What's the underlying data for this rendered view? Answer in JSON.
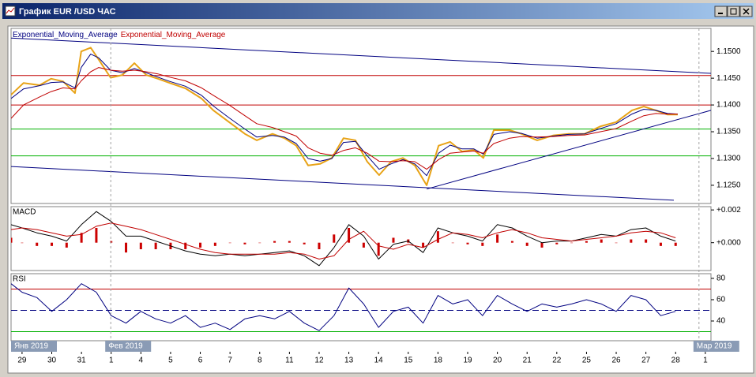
{
  "window": {
    "title": "График EUR /USD  ЧАС"
  },
  "time_axis": {
    "ticks": [
      {
        "value": 0,
        "label": "29"
      },
      {
        "value": 1,
        "label": "30"
      },
      {
        "value": 2,
        "label": "31"
      },
      {
        "value": 3,
        "label": "1"
      },
      {
        "value": 4,
        "label": "4"
      },
      {
        "value": 5,
        "label": "5"
      },
      {
        "value": 6,
        "label": "6"
      },
      {
        "value": 7,
        "label": "7"
      },
      {
        "value": 8,
        "label": "8"
      },
      {
        "value": 9,
        "label": "11"
      },
      {
        "value": 10,
        "label": "12"
      },
      {
        "value": 11,
        "label": "13"
      },
      {
        "value": 12,
        "label": "14"
      },
      {
        "value": 13,
        "label": "15"
      },
      {
        "value": 14,
        "label": "18"
      },
      {
        "value": 15,
        "label": "19"
      },
      {
        "value": 16,
        "label": "20"
      },
      {
        "value": 17,
        "label": "21"
      },
      {
        "value": 18,
        "label": "22"
      },
      {
        "value": 19,
        "label": "25"
      },
      {
        "value": 20,
        "label": "26"
      },
      {
        "value": 21,
        "label": "27"
      },
      {
        "value": 22,
        "label": "28"
      },
      {
        "value": 23,
        "label": "1"
      }
    ],
    "months": [
      {
        "value": -0.37,
        "label": "Янв 2019"
      },
      {
        "value": 2.8,
        "label": "Фев 2019"
      },
      {
        "value": 22.6,
        "label": "Мар 2019"
      }
    ]
  },
  "chart_data": [
    {
      "type": "line",
      "xlim": [
        -0.37,
        23.19
      ],
      "ylim": [
        1.1216,
        1.1543
      ],
      "yticks": [
        {
          "value": 1.125,
          "label": "1.1250"
        },
        {
          "value": 1.13,
          "label": "1.1300"
        },
        {
          "value": 1.135,
          "label": "1.1350"
        },
        {
          "value": 1.14,
          "label": "1.1400"
        },
        {
          "value": 1.145,
          "label": "1.1450"
        },
        {
          "value": 1.15,
          "label": "1.1500"
        }
      ],
      "x": [
        -0.37,
        0.05,
        0.59,
        0.98,
        1.38,
        1.78,
        1.99,
        2.31,
        2.58,
        2.98,
        3.38,
        3.78,
        4.18,
        4.57,
        4.97,
        5.5,
        6.04,
        6.44,
        6.97,
        7.5,
        7.9,
        8.43,
        8.83,
        9.23,
        9.63,
        10.03,
        10.43,
        10.82,
        11.22,
        11.62,
        12.02,
        12.42,
        12.82,
        13.22,
        13.62,
        14.02,
        14.41,
        14.81,
        15.21,
        15.53,
        15.88,
        16.41,
        16.81,
        17.34,
        17.87,
        18.4,
        18.94,
        19.47,
        20,
        20.53,
        20.93,
        21.33,
        21.73,
        22.07
      ],
      "series": [
        {
          "color": "#e8a317",
          "values": [
            1.1419,
            1.1441,
            1.1437,
            1.1449,
            1.1444,
            1.1422,
            1.15,
            1.1507,
            1.1485,
            1.1451,
            1.1456,
            1.1478,
            1.1456,
            1.1449,
            1.1441,
            1.1431,
            1.1412,
            1.139,
            1.1368,
            1.1346,
            1.1334,
            1.1346,
            1.1338,
            1.1324,
            1.1287,
            1.129,
            1.1301,
            1.1338,
            1.1334,
            1.1294,
            1.1269,
            1.1294,
            1.1301,
            1.1287,
            1.125,
            1.1324,
            1.1331,
            1.1313,
            1.1316,
            1.1301,
            1.1353,
            1.1353,
            1.1346,
            1.1334,
            1.1343,
            1.1346,
            1.1346,
            1.136,
            1.1368,
            1.139,
            1.1397,
            1.139,
            1.1382,
            1.1382
          ]
        },
        {
          "name": "Exponential_Moving_Average",
          "color": "#000080",
          "values": [
            1.1412,
            1.143,
            1.1436,
            1.1442,
            1.1443,
            1.1432,
            1.147,
            1.1495,
            1.1488,
            1.1465,
            1.146,
            1.1468,
            1.146,
            1.1452,
            1.1444,
            1.1435,
            1.1418,
            1.1398,
            1.1376,
            1.1355,
            1.134,
            1.1343,
            1.134,
            1.1328,
            1.13,
            1.1295,
            1.13,
            1.133,
            1.1332,
            1.1305,
            1.128,
            1.129,
            1.1298,
            1.129,
            1.1268,
            1.131,
            1.1325,
            1.1318,
            1.1318,
            1.1308,
            1.1345,
            1.135,
            1.1347,
            1.1338,
            1.1342,
            1.1345,
            1.1346,
            1.1356,
            1.1365,
            1.1383,
            1.1392,
            1.139,
            1.1384,
            1.1383
          ]
        },
        {
          "name": "Exponential_Moving_Average",
          "color": "#c00000",
          "values": [
            1.1375,
            1.14,
            1.1415,
            1.1425,
            1.1432,
            1.143,
            1.1445,
            1.1462,
            1.147,
            1.1465,
            1.1463,
            1.1465,
            1.1462,
            1.1458,
            1.1452,
            1.1445,
            1.1432,
            1.1418,
            1.14,
            1.138,
            1.1365,
            1.1358,
            1.135,
            1.1342,
            1.132,
            1.131,
            1.1306,
            1.1315,
            1.132,
            1.131,
            1.1295,
            1.1294,
            1.1296,
            1.1294,
            1.128,
            1.1298,
            1.131,
            1.1312,
            1.1314,
            1.131,
            1.1328,
            1.1338,
            1.1341,
            1.134,
            1.1341,
            1.1343,
            1.1344,
            1.135,
            1.1356,
            1.137,
            1.138,
            1.1384,
            1.1383,
            1.1383
          ]
        }
      ],
      "hlines": [
        {
          "value": 1.1455,
          "color": "#c00000"
        },
        {
          "value": 1.14,
          "color": "#c00000"
        },
        {
          "value": 1.1355,
          "color": "#00b000"
        },
        {
          "value": 1.1305,
          "color": "#00b000"
        }
      ],
      "trendlines": [
        {
          "x": [
            -0.37,
            23.19
          ],
          "y": [
            1.1525,
            1.1459
          ],
          "color": "#000080"
        },
        {
          "x": [
            -0.37,
            21.94
          ],
          "y": [
            1.1285,
            1.1222
          ],
          "color": "#000080"
        },
        {
          "x": [
            13.62,
            23.19
          ],
          "y": [
            1.1243,
            1.139
          ],
          "color": "#000080"
        }
      ]
    },
    {
      "type": "line",
      "title": "MACD",
      "xlim": [
        -0.37,
        23.19
      ],
      "ylim": [
        -0.0017,
        0.0022
      ],
      "yticks": [
        {
          "value": 0.002,
          "label": "+0.002"
        },
        {
          "value": 0,
          "label": "+0.000"
        }
      ],
      "x": [
        -0.37,
        0,
        0.5,
        1,
        1.5,
        2,
        2.5,
        3,
        3.5,
        4,
        4.5,
        5,
        5.5,
        6,
        6.5,
        7,
        7.5,
        8,
        8.5,
        9,
        9.5,
        10,
        10.5,
        11,
        11.5,
        12,
        12.5,
        13,
        13.5,
        14,
        14.5,
        15,
        15.5,
        16,
        16.5,
        17,
        17.5,
        18,
        18.5,
        19,
        19.5,
        20,
        20.5,
        21,
        21.5,
        22
      ],
      "series": [
        {
          "kind": "bar",
          "color": "#cc0000",
          "values": [
            0.0003,
            0,
            -0.0002,
            -0.0002,
            -0.0003,
            0.0006,
            0.0009,
            0.0001,
            -0.0006,
            -0.0004,
            -0.0004,
            -0.0004,
            -0.0004,
            -0.0003,
            -0.0002,
            0,
            -0.0001,
            0,
            0.0001,
            0.0001,
            -0.0001,
            -0.0004,
            0.0005,
            0.0009,
            -0.0003,
            -0.0008,
            0.0003,
            0.0002,
            -0.0003,
            0.0007,
            0,
            -0.0001,
            -0.0002,
            0.0005,
            0.0001,
            -0.0002,
            -0.0003,
            -0.0001,
            0,
            0.0001,
            0.0002,
            0,
            0.0002,
            0.0002,
            -0.0002,
            -0.0002
          ]
        },
        {
          "color": "#000000",
          "values": [
            0.0011,
            0.0009,
            0.0006,
            0.0004,
            0.0001,
            0.0011,
            0.0019,
            0.0013,
            0.0004,
            0.0004,
            0.0001,
            -0.0002,
            -0.0005,
            -0.0007,
            -0.0008,
            -0.0007,
            -0.0008,
            -0.0007,
            -0.0006,
            -0.0005,
            -0.0008,
            -0.0014,
            -0.0003,
            0.0011,
            0.0004,
            -0.001,
            -0.0001,
            0.0001,
            -0.0006,
            0.0009,
            0.0006,
            0.0004,
            0.0001,
            0.0011,
            0.0009,
            0.0004,
            0,
            0.0001,
            0.0001,
            0.0003,
            0.0005,
            0.0004,
            0.0008,
            0.0009,
            0.0004,
            0.0001
          ]
        },
        {
          "color": "#c00000",
          "values": [
            0.0008,
            0.0009,
            0.0008,
            0.0006,
            0.0004,
            0.0005,
            0.001,
            0.0012,
            0.001,
            0.0008,
            0.0005,
            0.0002,
            -0.0001,
            -0.0004,
            -0.0006,
            -0.0007,
            -0.0007,
            -0.0007,
            -0.0007,
            -0.0006,
            -0.0007,
            -0.001,
            -0.0008,
            0.0002,
            0.0007,
            -0.0002,
            -0.0004,
            -0.0001,
            -0.0003,
            0.0002,
            0.0006,
            0.0005,
            0.0003,
            0.0006,
            0.0008,
            0.0006,
            0.0003,
            0.0002,
            0.0001,
            0.0002,
            0.0003,
            0.0004,
            0.0006,
            0.0007,
            0.0006,
            0.0003
          ]
        }
      ]
    },
    {
      "type": "line",
      "title": "RSI",
      "xlim": [
        -0.37,
        23.19
      ],
      "ylim": [
        21.5,
        84.4
      ],
      "yticks": [
        80,
        60,
        40
      ],
      "x": [
        -0.37,
        0,
        0.5,
        1,
        1.5,
        2,
        2.5,
        3,
        3.5,
        4,
        4.5,
        5,
        5.5,
        6,
        6.5,
        7,
        7.5,
        8,
        8.5,
        9,
        9.5,
        10,
        10.5,
        11,
        11.5,
        12,
        12.5,
        13,
        13.5,
        14,
        14.5,
        15,
        15.5,
        16,
        16.5,
        17,
        17.5,
        18,
        18.5,
        19,
        19.5,
        20,
        20.5,
        21,
        21.5,
        22
      ],
      "series": [
        {
          "color": "#000080",
          "values": [
            75,
            67,
            62,
            49,
            60,
            75,
            67,
            45,
            38,
            49,
            42,
            38,
            45,
            34,
            38,
            32,
            42,
            45,
            42,
            49,
            38,
            31,
            45,
            71,
            56,
            34,
            49,
            53,
            38,
            64,
            56,
            60,
            45,
            64,
            56,
            49,
            56,
            53,
            56,
            60,
            56,
            49,
            64,
            60,
            45,
            49
          ]
        }
      ],
      "hlines": [
        {
          "value": 70,
          "color": "#c00000"
        },
        {
          "value": 50,
          "color": "#000080",
          "dashed": true
        },
        {
          "value": 30,
          "color": "#00b000"
        }
      ]
    }
  ]
}
